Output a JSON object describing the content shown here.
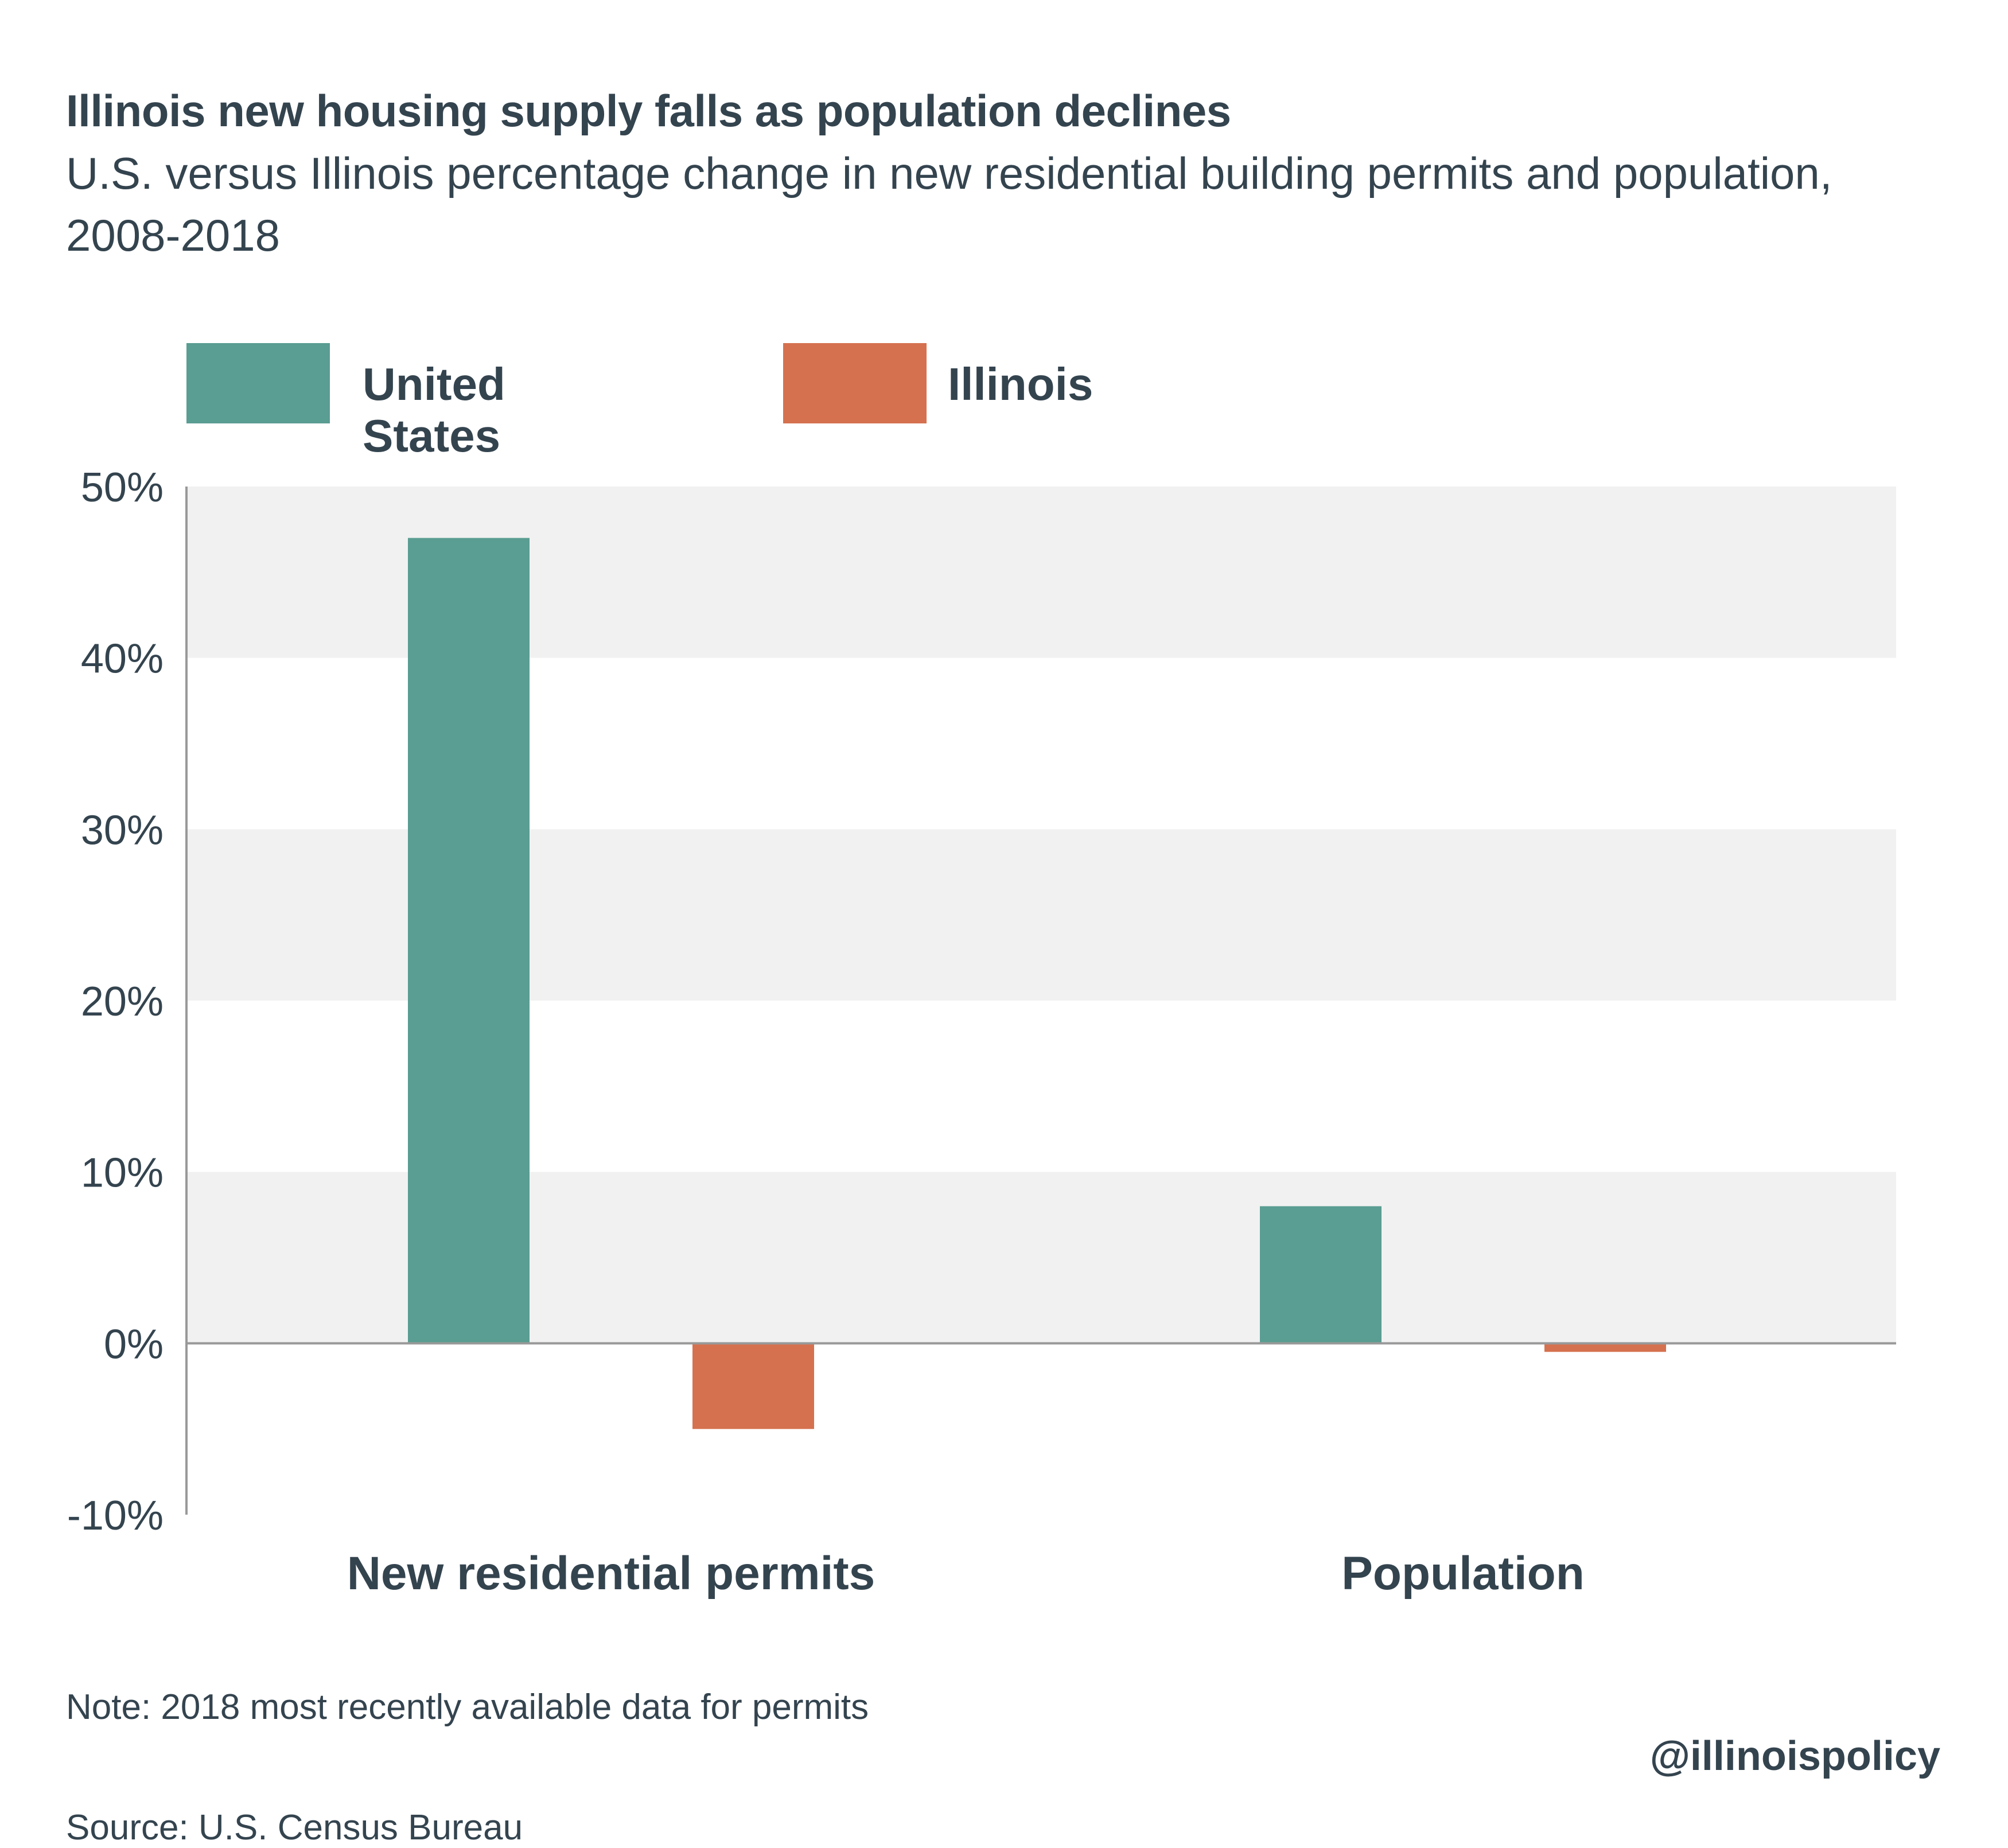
{
  "header": {
    "title": "Illinois new housing supply falls as population declines",
    "subtitle": "U.S. versus Illinois percentage change in new residential building permits and population, 2008-2018"
  },
  "footer": {
    "note": "Note: 2018 most recently available data for permits",
    "source": "Source: U.S. Census Bureau",
    "handle": "@illinoispolicy"
  },
  "colors": {
    "united_states": "#5a9d92",
    "illinois": "#d5714f",
    "band": "#f1f1f1",
    "axis": "#999999"
  },
  "chart_data": {
    "type": "bar",
    "title": "Illinois new housing supply falls as population declines",
    "subtitle": "U.S. versus Illinois percentage change in new residential building permits and population, 2008-2018",
    "categories": [
      "New residential permits",
      "Population"
    ],
    "series": [
      {
        "name": "United States",
        "color": "#5a9d92",
        "values": [
          47,
          8
        ]
      },
      {
        "name": "Illinois",
        "color": "#d5714f",
        "values": [
          -5,
          -0.5
        ]
      }
    ],
    "ylim": [
      -10,
      50
    ],
    "yticks": [
      -10,
      0,
      10,
      20,
      30,
      40,
      50
    ],
    "ytick_labels": [
      "-10%",
      "0%",
      "10%",
      "20%",
      "30%",
      "40%",
      "50%"
    ],
    "xlabel": "",
    "ylabel": "",
    "legend": "top-left",
    "grid": "alternating horizontal bands"
  }
}
